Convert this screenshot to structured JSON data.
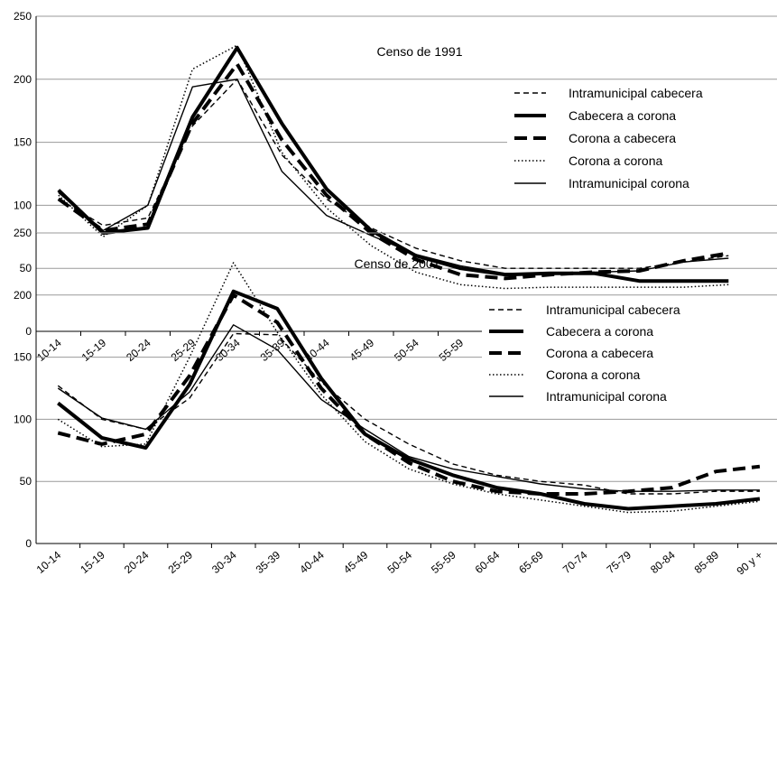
{
  "series_styles": [
    {
      "name": "Intramunicipal cabecera",
      "width": 1.4,
      "dash": "6,4",
      "color": "#000000"
    },
    {
      "name": "Cabecera a corona",
      "width": 4,
      "dash": "",
      "color": "#000000"
    },
    {
      "name": "Corona a cabecera",
      "width": 4,
      "dash": "14,7",
      "color": "#000000"
    },
    {
      "name": "Corona a corona",
      "width": 1.5,
      "dash": "1.5,2.5",
      "color": "#000000"
    },
    {
      "name": "Intramunicipal corona",
      "width": 1.4,
      "dash": "",
      "color": "#000000"
    }
  ],
  "chart_data": [
    {
      "type": "line",
      "title": "Censo de 1991",
      "xlabel": "",
      "ylabel": "",
      "ylim": [
        0,
        250
      ],
      "yticks": [
        "0",
        "50",
        "100",
        "150",
        "200",
        "250"
      ],
      "grid": true,
      "legend": "right",
      "categories": [
        "10-14",
        "15-19",
        "20-24",
        "25-29",
        "30-34",
        "35-39",
        "40-44",
        "45-49",
        "50-54",
        "55-59",
        "60-64",
        "65-69",
        "70-74",
        "75-79",
        "80-84",
        "85-89"
      ],
      "series": [
        {
          "name": "Intramunicipal cabecera",
          "values": [
            105,
            84,
            90,
            163,
            200,
            140,
            105,
            82,
            66,
            56,
            50,
            50,
            50,
            50,
            55,
            60
          ]
        },
        {
          "name": "Cabecera a corona",
          "values": [
            112,
            78,
            82,
            170,
            225,
            165,
            113,
            80,
            60,
            50,
            45,
            46,
            46,
            40,
            40,
            40
          ]
        },
        {
          "name": "Corona a cabecera",
          "values": [
            105,
            80,
            85,
            165,
            212,
            152,
            108,
            78,
            57,
            45,
            42,
            45,
            47,
            48,
            56,
            62
          ]
        },
        {
          "name": "Corona a corona",
          "values": [
            108,
            75,
            100,
            208,
            227,
            142,
            98,
            68,
            47,
            37,
            34,
            35,
            35,
            35,
            35,
            37
          ]
        },
        {
          "name": "Intramunicipal corona",
          "values": [
            110,
            80,
            100,
            194,
            200,
            127,
            92,
            76,
            61,
            52,
            46,
            46,
            47,
            48,
            55,
            58
          ]
        }
      ]
    },
    {
      "type": "line",
      "title": "Censo de 2001",
      "xlabel": "",
      "ylabel": "",
      "ylim": [
        0,
        250
      ],
      "yticks": [
        "0",
        "50",
        "100",
        "150",
        "200",
        "250"
      ],
      "grid": true,
      "legend": "right",
      "categories": [
        "10-14",
        "15-19",
        "20-24",
        "25-29",
        "30-34",
        "35-39",
        "40-44",
        "45-49",
        "50-54",
        "55-59",
        "60-64",
        "65-69",
        "70-74",
        "75-79",
        "80-84",
        "85-89",
        "90 y +"
      ],
      "series": [
        {
          "name": "Intramunicipal cabecera",
          "values": [
            127,
            100,
            92,
            117,
            169,
            168,
            130,
            100,
            80,
            64,
            55,
            50,
            47,
            40,
            40,
            42,
            42
          ]
        },
        {
          "name": "Cabecera a corona",
          "values": [
            113,
            85,
            77,
            128,
            203,
            189,
            133,
            88,
            68,
            55,
            45,
            40,
            32,
            28,
            30,
            32,
            36
          ]
        },
        {
          "name": "Corona a cabecera",
          "values": [
            89,
            80,
            88,
            135,
            200,
            178,
            125,
            88,
            65,
            50,
            42,
            40,
            40,
            42,
            45,
            58,
            62
          ]
        },
        {
          "name": "Corona a corona",
          "values": [
            100,
            78,
            80,
            150,
            226,
            170,
            120,
            82,
            60,
            48,
            40,
            35,
            30,
            25,
            26,
            30,
            34
          ]
        },
        {
          "name": "Intramunicipal corona",
          "values": [
            125,
            101,
            92,
            122,
            176,
            156,
            116,
            92,
            70,
            60,
            54,
            48,
            44,
            42,
            42,
            43,
            43
          ]
        }
      ]
    }
  ]
}
